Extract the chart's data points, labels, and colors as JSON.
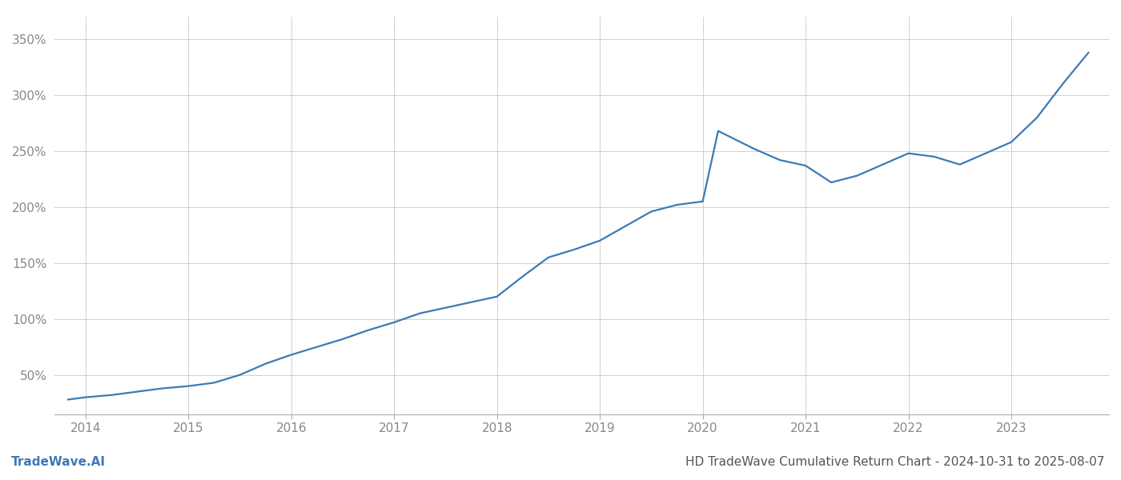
{
  "title": "HD TradeWave Cumulative Return Chart - 2024-10-31 to 2025-08-07",
  "watermark": "TradeWave.AI",
  "line_color": "#3d7ab5",
  "background_color": "#ffffff",
  "grid_color": "#d0d0d0",
  "x_years": [
    2013.83,
    2014.0,
    2014.25,
    2014.5,
    2014.75,
    2015.0,
    2015.25,
    2015.5,
    2015.75,
    2016.0,
    2016.25,
    2016.5,
    2016.75,
    2017.0,
    2017.25,
    2017.5,
    2017.75,
    2018.0,
    2018.25,
    2018.5,
    2018.75,
    2019.0,
    2019.25,
    2019.5,
    2019.75,
    2020.0,
    2020.15,
    2020.5,
    2020.75,
    2021.0,
    2021.25,
    2021.5,
    2021.75,
    2022.0,
    2022.25,
    2022.5,
    2022.75,
    2023.0,
    2023.25,
    2023.5,
    2023.75
  ],
  "y_values": [
    28,
    30,
    32,
    35,
    38,
    40,
    43,
    50,
    60,
    68,
    75,
    82,
    90,
    97,
    105,
    110,
    115,
    120,
    138,
    155,
    162,
    170,
    183,
    196,
    202,
    205,
    268,
    252,
    242,
    237,
    222,
    228,
    238,
    248,
    245,
    238,
    248,
    258,
    280,
    310,
    338
  ],
  "yticks": [
    50,
    100,
    150,
    200,
    250,
    300,
    350
  ],
  "xticks": [
    2014,
    2015,
    2016,
    2017,
    2018,
    2019,
    2020,
    2021,
    2022,
    2023
  ],
  "xlim": [
    2013.7,
    2023.95
  ],
  "ylim": [
    15,
    370
  ],
  "title_fontsize": 11,
  "tick_fontsize": 11,
  "watermark_fontsize": 11,
  "line_width": 1.6
}
